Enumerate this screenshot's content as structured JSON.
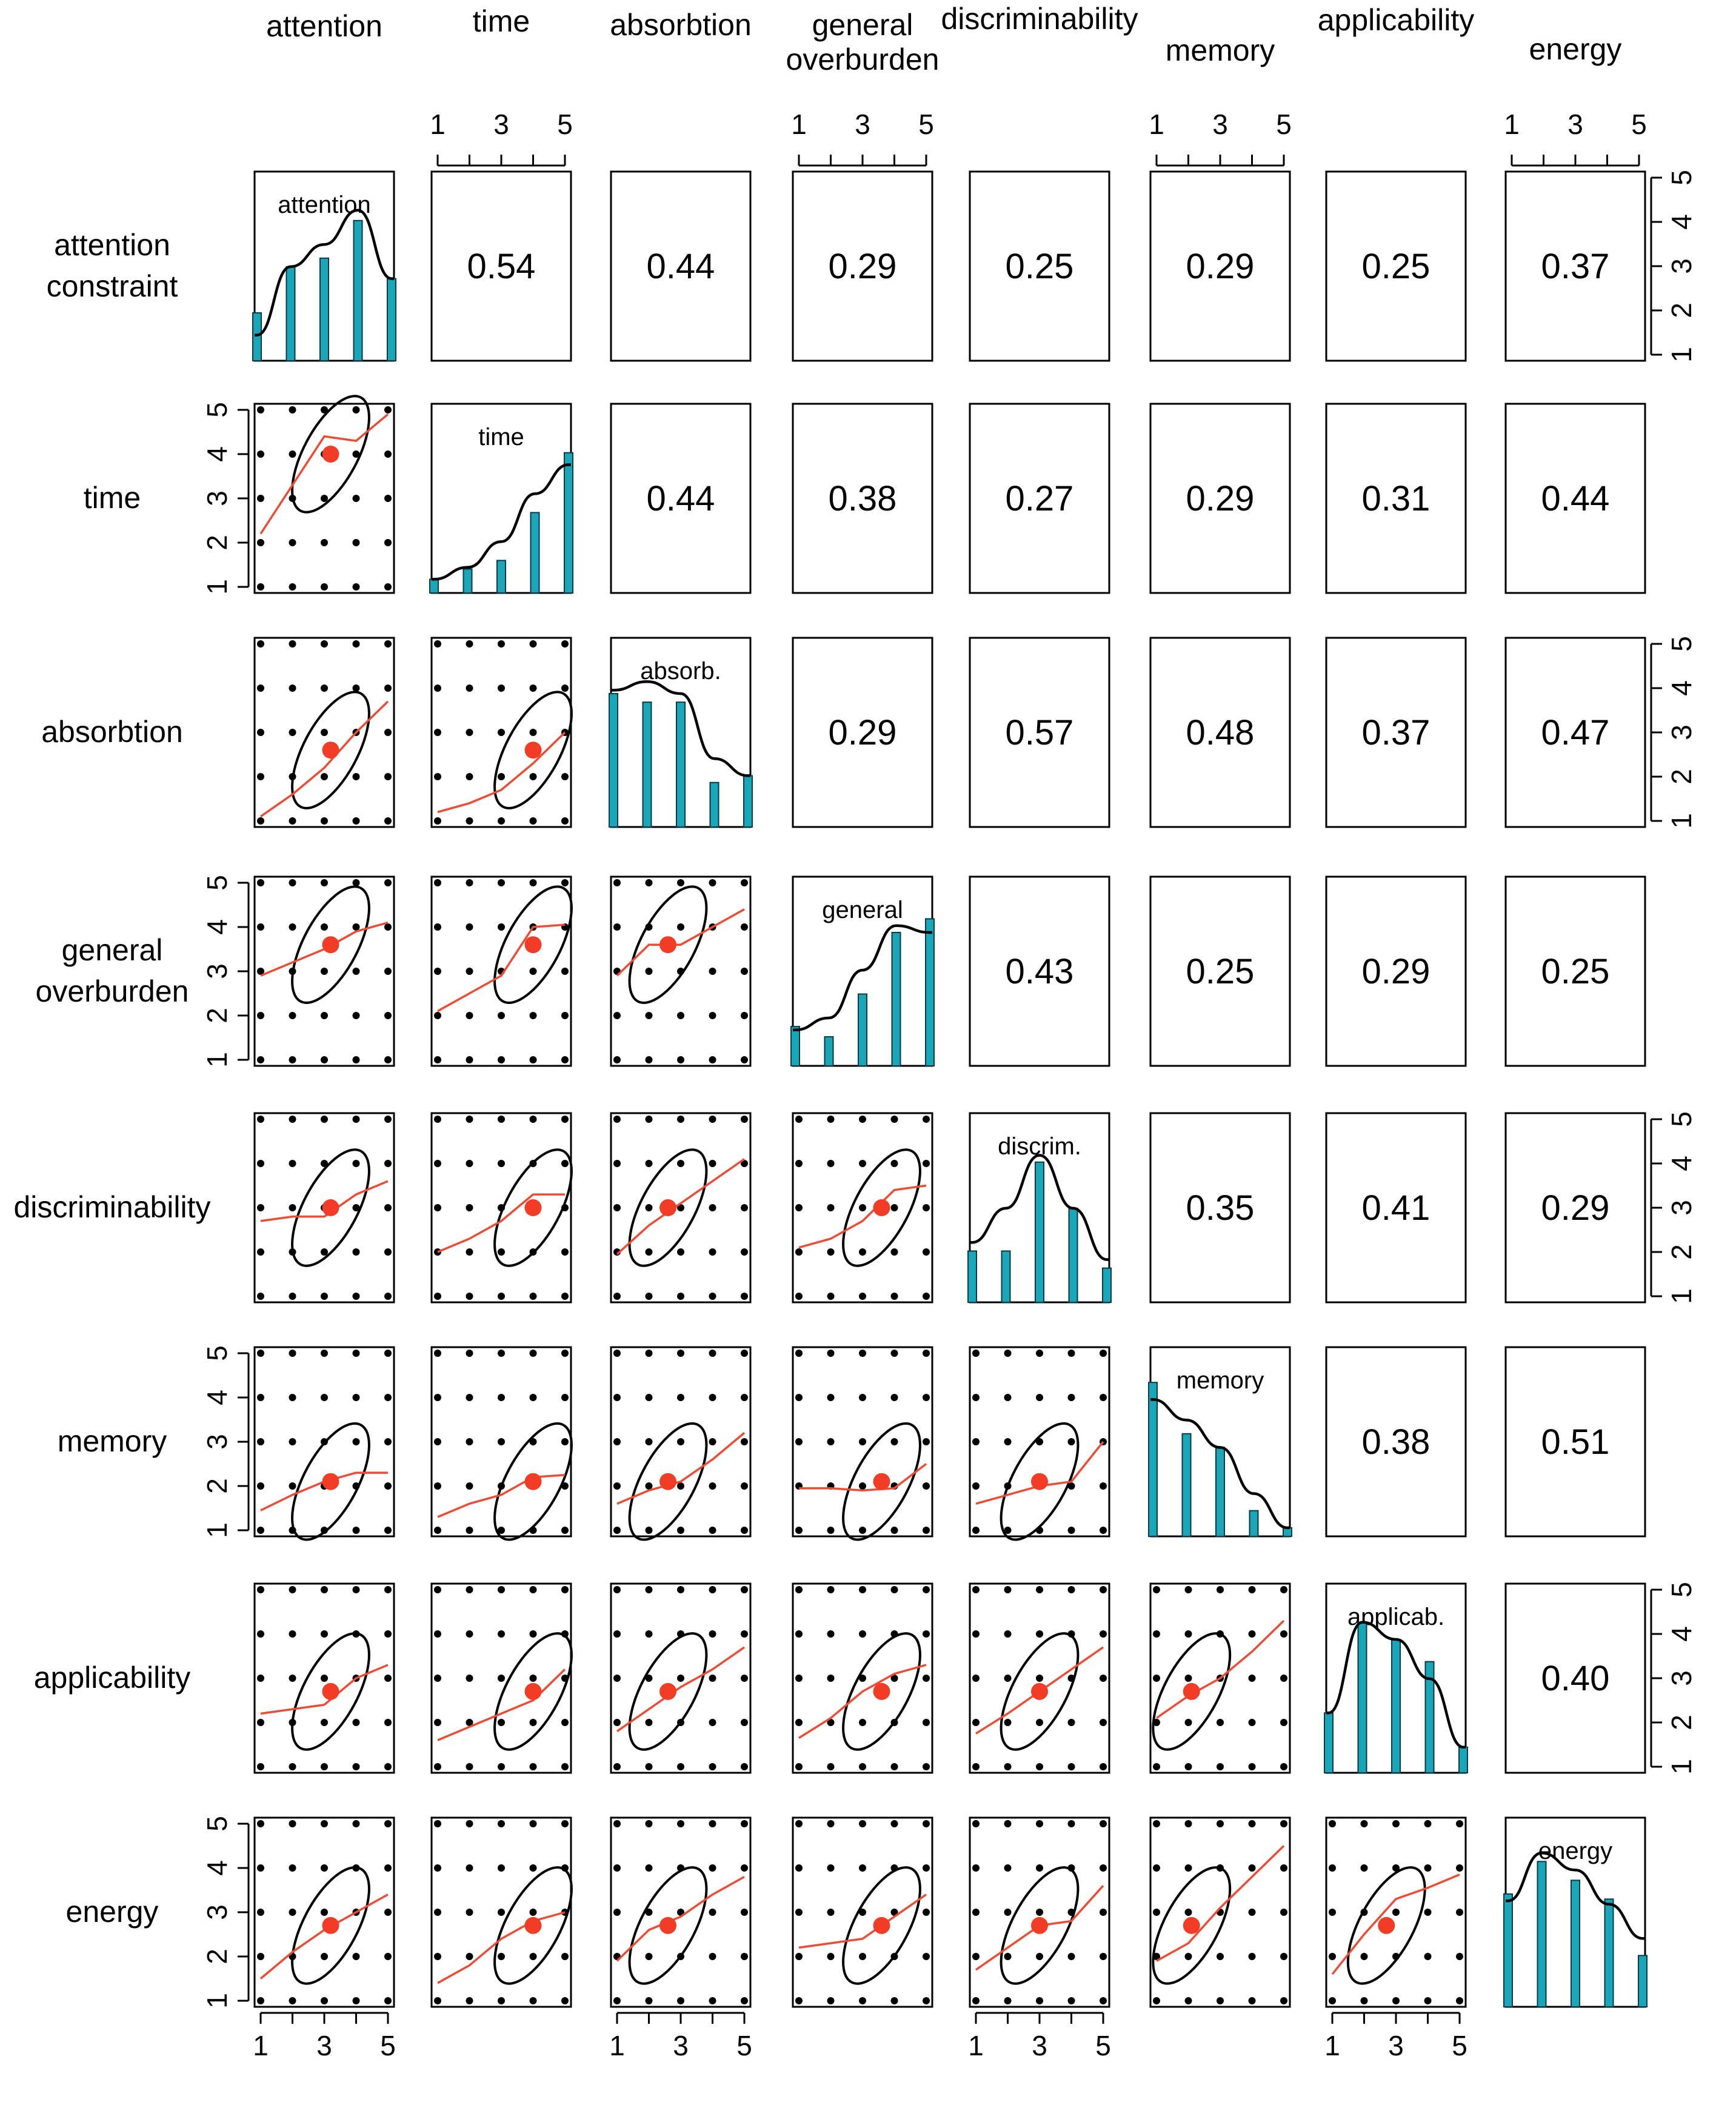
{
  "chart_data": {
    "type": "scatter-matrix",
    "variables": [
      "attention constraint",
      "time",
      "absorbtion",
      "general overburden",
      "discriminability",
      "memory",
      "applicability",
      "energy"
    ],
    "column_headers": [
      "attention",
      "time",
      "absorbtion",
      "general\noverburden",
      "discriminability",
      "memory",
      "applicability",
      "energy"
    ],
    "row_labels": [
      "attention\nconstraint",
      "time",
      "absorbtion",
      "general\noverburden",
      "discriminability",
      "memory",
      "applicability",
      "energy"
    ],
    "diagonal_labels": [
      "attention",
      "time",
      "absorb.",
      "general",
      "discrim.",
      "memory",
      "applicab.",
      "energy"
    ],
    "axis_range": [
      1,
      5
    ],
    "tick_labels": [
      "1",
      "2",
      "3",
      "4",
      "5"
    ],
    "correlations": [
      [
        "",
        "0.54",
        "0.44",
        "0.29",
        "0.25",
        "0.29",
        "0.25",
        "0.37"
      ],
      [
        "",
        "",
        "0.44",
        "0.38",
        "0.27",
        "0.29",
        "0.31",
        "0.44"
      ],
      [
        "",
        "",
        "",
        "0.29",
        "0.57",
        "0.48",
        "0.37",
        "0.47"
      ],
      [
        "",
        "",
        "",
        "",
        "0.43",
        "0.25",
        "0.29",
        "0.25"
      ],
      [
        "",
        "",
        "",
        "",
        "",
        "0.35",
        "0.41",
        "0.29"
      ],
      [
        "",
        "",
        "",
        "",
        "",
        "",
        "0.38",
        "0.51"
      ],
      [
        "",
        "",
        "",
        "",
        "",
        "",
        "",
        "0.40"
      ],
      [
        "",
        "",
        "",
        "",
        "",
        "",
        "",
        ""
      ]
    ],
    "means": [
      3.2,
      4.0,
      2.6,
      3.6,
      3.0,
      2.1,
      2.7,
      2.7
    ],
    "diagonal_histograms": [
      [
        0.28,
        0.55,
        0.6,
        0.82,
        0.48
      ],
      [
        0.08,
        0.14,
        0.19,
        0.47,
        0.82
      ],
      [
        0.78,
        0.73,
        0.73,
        0.26,
        0.3
      ],
      [
        0.23,
        0.17,
        0.42,
        0.78,
        0.86
      ],
      [
        0.3,
        0.3,
        0.82,
        0.55,
        0.2
      ],
      [
        0.9,
        0.6,
        0.52,
        0.15,
        0.05
      ],
      [
        0.35,
        0.88,
        0.78,
        0.65,
        0.15
      ],
      [
        0.66,
        0.85,
        0.74,
        0.63,
        0.3
      ]
    ],
    "diagonal_density": [
      [
        0.15,
        0.55,
        0.68,
        0.88,
        0.48
      ],
      [
        0.08,
        0.15,
        0.3,
        0.58,
        0.75
      ],
      [
        0.8,
        0.85,
        0.78,
        0.4,
        0.3
      ],
      [
        0.21,
        0.28,
        0.56,
        0.82,
        0.78
      ],
      [
        0.35,
        0.55,
        0.86,
        0.55,
        0.25
      ],
      [
        0.8,
        0.68,
        0.52,
        0.25,
        0.05
      ],
      [
        0.35,
        0.88,
        0.78,
        0.55,
        0.15
      ],
      [
        0.62,
        0.9,
        0.8,
        0.6,
        0.4
      ]
    ],
    "loess": [
      [
        null,
        null,
        null,
        null,
        null,
        null,
        null,
        null
      ],
      [
        [
          2.2,
          3.3,
          4.4,
          4.3,
          4.9
        ],
        null,
        null,
        null,
        null,
        null,
        null,
        null
      ],
      [
        [
          1.1,
          1.6,
          2.2,
          3.0,
          3.7
        ],
        [
          1.2,
          1.4,
          1.7,
          2.3,
          3.0
        ],
        null,
        null,
        null,
        null,
        null,
        null
      ],
      [
        [
          2.9,
          3.2,
          3.5,
          3.9,
          4.1
        ],
        [
          2.1,
          2.5,
          2.9,
          4.0,
          4.05
        ],
        [
          2.9,
          3.6,
          3.6,
          4.0,
          4.4
        ],
        null,
        null,
        null,
        null,
        null
      ],
      [
        [
          2.7,
          2.8,
          2.8,
          3.3,
          3.6
        ],
        [
          2.0,
          2.3,
          2.7,
          3.3,
          3.3
        ],
        [
          1.95,
          2.6,
          3.1,
          3.6,
          4.1
        ],
        [
          2.1,
          2.3,
          2.7,
          3.4,
          3.5
        ],
        null,
        null,
        null,
        null
      ],
      [
        [
          1.45,
          1.8,
          2.1,
          2.3,
          2.3
        ],
        [
          1.3,
          1.6,
          1.8,
          2.2,
          2.25
        ],
        [
          1.6,
          1.9,
          2.1,
          2.6,
          3.2
        ],
        [
          1.95,
          1.95,
          1.9,
          1.95,
          2.5
        ],
        [
          1.6,
          1.8,
          2.0,
          2.1,
          3.0
        ],
        null,
        null,
        null
      ],
      [
        [
          2.2,
          2.3,
          2.4,
          3.0,
          3.3
        ],
        [
          1.6,
          1.9,
          2.2,
          2.5,
          3.2
        ],
        [
          1.8,
          2.3,
          2.8,
          3.2,
          3.7
        ],
        [
          1.65,
          2.1,
          2.7,
          3.1,
          3.3
        ],
        [
          1.75,
          2.2,
          2.7,
          3.2,
          3.7
        ],
        [
          2.1,
          2.6,
          3.0,
          3.6,
          4.3
        ],
        null,
        null
      ],
      [
        [
          1.5,
          2.1,
          2.6,
          3.0,
          3.4
        ],
        [
          1.4,
          1.8,
          2.4,
          2.8,
          3.0
        ],
        [
          1.9,
          2.6,
          2.9,
          3.4,
          3.8
        ],
        [
          2.2,
          2.3,
          2.4,
          2.9,
          3.4
        ],
        [
          1.7,
          2.2,
          2.7,
          2.8,
          3.6
        ],
        [
          1.9,
          2.3,
          3.1,
          3.8,
          4.5
        ],
        [
          1.6,
          2.5,
          3.3,
          3.55,
          3.85
        ],
        null
      ]
    ]
  }
}
